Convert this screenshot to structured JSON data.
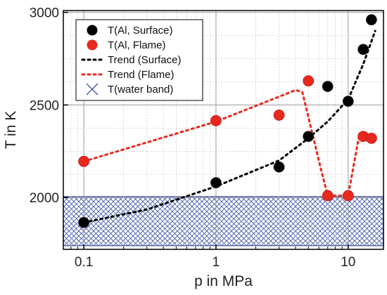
{
  "chart_data": {
    "type": "scatter",
    "xlabel": "p in MPa",
    "ylabel": "T in K",
    "xscale": "log",
    "xlim": [
      0.07,
      18.5
    ],
    "ylim": [
      1720,
      3010
    ],
    "x_ticks": [
      0.1,
      1,
      10
    ],
    "x_tick_labels": [
      "0.1",
      "1",
      "10"
    ],
    "y_ticks": [
      2000,
      2500,
      3000
    ],
    "y_tick_labels": [
      "2000",
      "2500",
      "3000"
    ],
    "grid": true,
    "legend_position": "top-left",
    "series": [
      {
        "name": "T(Al, Surface)",
        "kind": "points",
        "color": "#000000",
        "points": [
          {
            "x": 0.1,
            "y": 1865
          },
          {
            "x": 1,
            "y": 2080
          },
          {
            "x": 3,
            "y": 2165
          },
          {
            "x": 5,
            "y": 2330
          },
          {
            "x": 7,
            "y": 2600
          },
          {
            "x": 10,
            "y": 2520
          },
          {
            "x": 13,
            "y": 2800
          },
          {
            "x": 15,
            "y": 2960
          }
        ]
      },
      {
        "name": "T(Al, Flame)",
        "kind": "points",
        "color": "#e8281e",
        "points": [
          {
            "x": 0.1,
            "y": 2195
          },
          {
            "x": 1,
            "y": 2415
          },
          {
            "x": 3,
            "y": 2445
          },
          {
            "x": 5,
            "y": 2630
          },
          {
            "x": 7,
            "y": 2010
          },
          {
            "x": 10,
            "y": 2010
          },
          {
            "x": 13,
            "y": 2330
          },
          {
            "x": 15,
            "y": 2320
          }
        ]
      },
      {
        "name": "Trend (Surface)",
        "kind": "dotted-line",
        "color": "#000000",
        "points": [
          {
            "x": 0.1,
            "y": 1865
          },
          {
            "x": 0.3,
            "y": 1935
          },
          {
            "x": 1,
            "y": 2060
          },
          {
            "x": 3,
            "y": 2200
          },
          {
            "x": 5,
            "y": 2320
          },
          {
            "x": 7,
            "y": 2410
          },
          {
            "x": 10,
            "y": 2530
          },
          {
            "x": 13,
            "y": 2720
          },
          {
            "x": 16,
            "y": 2900
          }
        ]
      },
      {
        "name": "Trend (Flame)",
        "kind": "dotted-line",
        "color": "#e8281e",
        "points": [
          {
            "x": 0.1,
            "y": 2195
          },
          {
            "x": 1,
            "y": 2410
          },
          {
            "x": 4,
            "y": 2580
          },
          {
            "x": 4.5,
            "y": 2570
          },
          {
            "x": 6,
            "y": 2200
          },
          {
            "x": 7,
            "y": 2010
          },
          {
            "x": 10,
            "y": 2010
          },
          {
            "x": 12,
            "y": 2320
          },
          {
            "x": 15,
            "y": 2320
          }
        ]
      },
      {
        "name": "T(water band)",
        "kind": "hatched-band",
        "color": "#3a4fa3",
        "y_range": [
          1740,
          2005
        ]
      }
    ]
  }
}
